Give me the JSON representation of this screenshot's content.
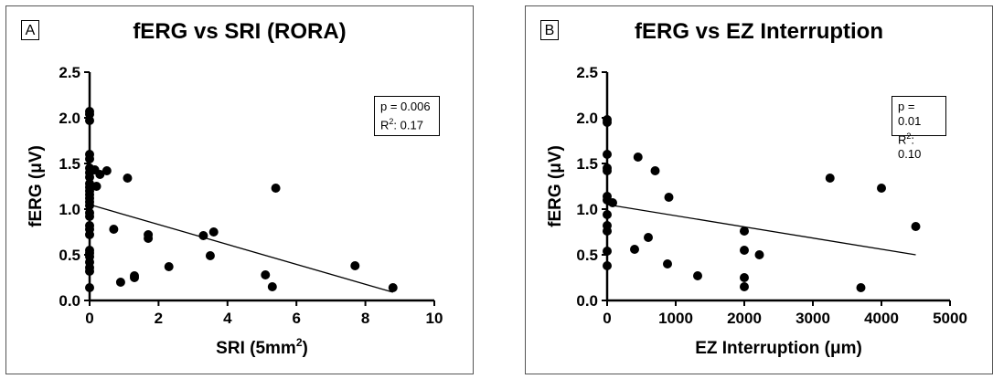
{
  "chart_data": [
    {
      "type": "scatter",
      "panel_label": "A",
      "title": "fERG vs SRI (RORA)",
      "xlabel": "SRI (5mm",
      "xlabel_sup": "2",
      "xlabel_end": ")",
      "ylabel": "fERG (μV)",
      "xlim": [
        0,
        10
      ],
      "ylim": [
        0,
        2.5
      ],
      "xticks": [
        0,
        2,
        4,
        6,
        8,
        10
      ],
      "yticks": [
        0.0,
        0.5,
        1.0,
        1.5,
        2.0,
        2.5
      ],
      "xtick_labels": [
        "0",
        "2",
        "4",
        "6",
        "8",
        "10"
      ],
      "ytick_labels": [
        "0.0",
        "0.5",
        "1.0",
        "1.5",
        "2.0",
        "2.5"
      ],
      "stats": {
        "p": "p = 0.006",
        "r2_prefix": "R",
        "r2_sup": "2",
        "r2_value": ": 0.17"
      },
      "regression": {
        "x": [
          0,
          8.8
        ],
        "y": [
          1.05,
          0.09
        ]
      },
      "points": [
        [
          0,
          2.07
        ],
        [
          0,
          2.04
        ],
        [
          0,
          1.97
        ],
        [
          0,
          1.6
        ],
        [
          0,
          1.55
        ],
        [
          0,
          1.45
        ],
        [
          0,
          1.4
        ],
        [
          0,
          1.35
        ],
        [
          0,
          1.28
        ],
        [
          0,
          1.24
        ],
        [
          0,
          1.2
        ],
        [
          0,
          1.16
        ],
        [
          0,
          1.12
        ],
        [
          0,
          1.08
        ],
        [
          0,
          1.04
        ],
        [
          0,
          0.96
        ],
        [
          0,
          0.92
        ],
        [
          0,
          0.82
        ],
        [
          0,
          0.78
        ],
        [
          0,
          0.72
        ],
        [
          0,
          0.55
        ],
        [
          0,
          0.52
        ],
        [
          0,
          0.48
        ],
        [
          0,
          0.42
        ],
        [
          0,
          0.36
        ],
        [
          0,
          0.32
        ],
        [
          0,
          0.14
        ],
        [
          0.15,
          1.43
        ],
        [
          0.2,
          1.25
        ],
        [
          0.3,
          1.38
        ],
        [
          0.5,
          1.42
        ],
        [
          0.7,
          0.78
        ],
        [
          0.9,
          0.2
        ],
        [
          1.1,
          1.34
        ],
        [
          1.3,
          0.25
        ],
        [
          1.3,
          0.27
        ],
        [
          1.7,
          0.68
        ],
        [
          1.7,
          0.72
        ],
        [
          2.3,
          0.37
        ],
        [
          3.3,
          0.71
        ],
        [
          3.5,
          0.49
        ],
        [
          3.6,
          0.75
        ],
        [
          5.1,
          0.28
        ],
        [
          5.3,
          0.15
        ],
        [
          5.4,
          1.23
        ],
        [
          7.7,
          0.38
        ],
        [
          8.8,
          0.14
        ]
      ]
    },
    {
      "type": "scatter",
      "panel_label": "B",
      "title": "fERG vs EZ Interruption",
      "xlabel": "EZ Interruption (μm)",
      "xlabel_sup": "",
      "xlabel_end": "",
      "ylabel": "fERG (μV)",
      "xlim": [
        0,
        5000
      ],
      "ylim": [
        0,
        2.5
      ],
      "xticks": [
        0,
        1000,
        2000,
        3000,
        4000,
        5000
      ],
      "yticks": [
        0.0,
        0.5,
        1.0,
        1.5,
        2.0,
        2.5
      ],
      "xtick_labels": [
        "0",
        "1000",
        "2000",
        "3000",
        "4000",
        "5000"
      ],
      "ytick_labels": [
        "0.0",
        "0.5",
        "1.0",
        "1.5",
        "2.0",
        "2.5"
      ],
      "stats": {
        "p": "p = 0.01",
        "r2_prefix": "R",
        "r2_sup": "2",
        "r2_value": ": 0.10"
      },
      "regression": {
        "x": [
          0,
          4500
        ],
        "y": [
          1.05,
          0.5
        ]
      },
      "points": [
        [
          0,
          1.98
        ],
        [
          0,
          1.95
        ],
        [
          0,
          1.6
        ],
        [
          0,
          1.45
        ],
        [
          0,
          1.42
        ],
        [
          0,
          1.14
        ],
        [
          0,
          1.1
        ],
        [
          0,
          0.94
        ],
        [
          0,
          0.82
        ],
        [
          0,
          0.76
        ],
        [
          0,
          0.54
        ],
        [
          0,
          0.38
        ],
        [
          80,
          1.07
        ],
        [
          400,
          0.56
        ],
        [
          450,
          1.57
        ],
        [
          600,
          0.69
        ],
        [
          700,
          1.42
        ],
        [
          880,
          0.4
        ],
        [
          900,
          1.13
        ],
        [
          1320,
          0.27
        ],
        [
          2000,
          0.76
        ],
        [
          2000,
          0.55
        ],
        [
          2000,
          0.25
        ],
        [
          2000,
          0.15
        ],
        [
          2220,
          0.5
        ],
        [
          3250,
          1.34
        ],
        [
          3700,
          0.14
        ],
        [
          4000,
          1.23
        ],
        [
          4500,
          0.81
        ]
      ]
    }
  ]
}
